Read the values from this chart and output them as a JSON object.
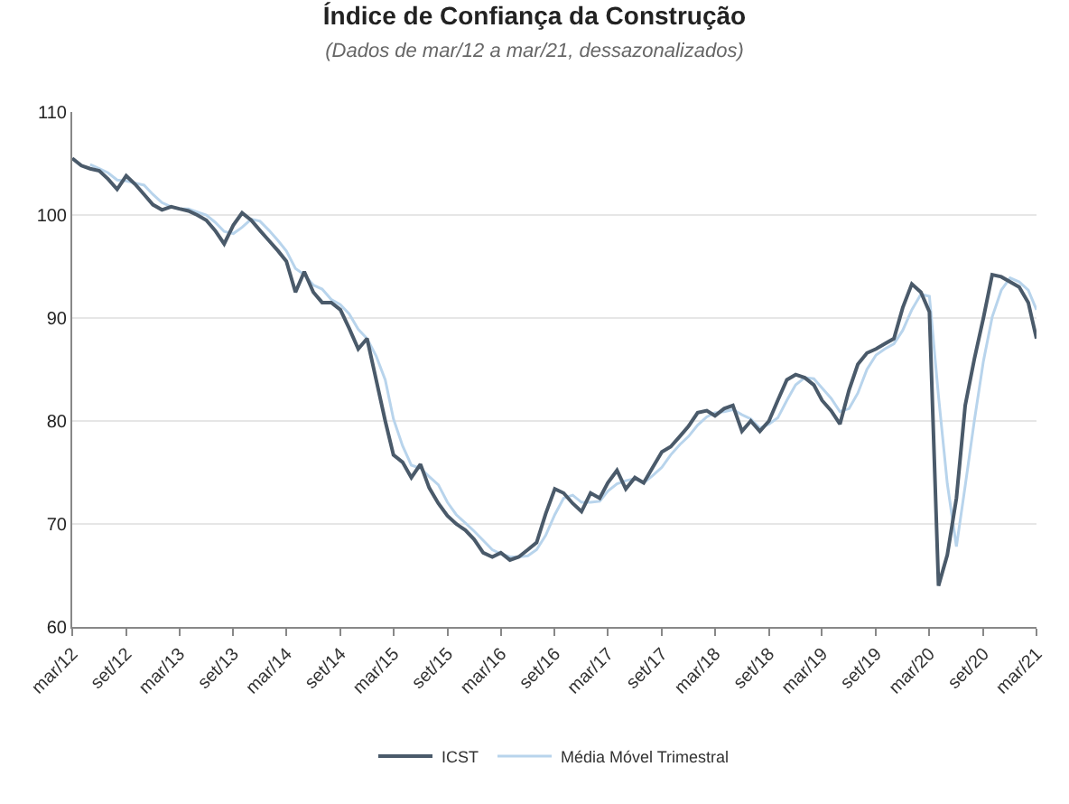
{
  "chart_data": {
    "type": "line",
    "title": "Índice de Confiança da Construção",
    "subtitle": "(Dados de mar/12 a mar/21, dessazonalizados)",
    "x": [
      "2012-03",
      "2012-04",
      "2012-05",
      "2012-06",
      "2012-07",
      "2012-08",
      "2012-09",
      "2012-10",
      "2012-11",
      "2012-12",
      "2013-01",
      "2013-02",
      "2013-03",
      "2013-04",
      "2013-05",
      "2013-06",
      "2013-07",
      "2013-08",
      "2013-09",
      "2013-10",
      "2013-11",
      "2013-12",
      "2014-01",
      "2014-02",
      "2014-03",
      "2014-04",
      "2014-05",
      "2014-06",
      "2014-07",
      "2014-08",
      "2014-09",
      "2014-10",
      "2014-11",
      "2014-12",
      "2015-01",
      "2015-02",
      "2015-03",
      "2015-04",
      "2015-05",
      "2015-06",
      "2015-07",
      "2015-08",
      "2015-09",
      "2015-10",
      "2015-11",
      "2015-12",
      "2016-01",
      "2016-02",
      "2016-03",
      "2016-04",
      "2016-05",
      "2016-06",
      "2016-07",
      "2016-08",
      "2016-09",
      "2016-10",
      "2016-11",
      "2016-12",
      "2017-01",
      "2017-02",
      "2017-03",
      "2017-04",
      "2017-05",
      "2017-06",
      "2017-07",
      "2017-08",
      "2017-09",
      "2017-10",
      "2017-11",
      "2017-12",
      "2018-01",
      "2018-02",
      "2018-03",
      "2018-04",
      "2018-05",
      "2018-06",
      "2018-07",
      "2018-08",
      "2018-09",
      "2018-10",
      "2018-11",
      "2018-12",
      "2019-01",
      "2019-02",
      "2019-03",
      "2019-04",
      "2019-05",
      "2019-06",
      "2019-07",
      "2019-08",
      "2019-09",
      "2019-10",
      "2019-11",
      "2019-12",
      "2020-01",
      "2020-02",
      "2020-03",
      "2020-04",
      "2020-05",
      "2020-06",
      "2020-07",
      "2020-08",
      "2020-09",
      "2020-10",
      "2020-11",
      "2020-12",
      "2021-01",
      "2021-02",
      "2021-03"
    ],
    "series": [
      {
        "name": "ICST",
        "color": "#4a5a6a",
        "values": [
          105.5,
          104.8,
          104.5,
          104.3,
          103.5,
          102.5,
          103.8,
          103,
          102,
          101,
          100.5,
          100.8,
          100.6,
          100.4,
          100,
          99.5,
          98.5,
          97.2,
          99,
          100.2,
          99.5,
          98.5,
          97.5,
          96.5,
          95.5,
          92.5,
          94.5,
          92.5,
          91.5,
          91.5,
          90.8,
          89,
          87,
          88,
          84,
          80,
          76.7,
          76,
          74.5,
          75.8,
          73.5,
          72,
          70.8,
          70,
          69.4,
          68.5,
          67.2,
          66.8,
          67.2,
          66.5,
          66.8,
          67.5,
          68.2,
          71,
          73.4,
          73,
          72,
          71.2,
          73,
          72.5,
          74,
          75.2,
          73.4,
          74.5,
          74,
          75.5,
          77,
          77.5,
          78.5,
          79.5,
          80.8,
          81,
          80.5,
          81.2,
          81.5,
          79,
          80,
          79,
          80,
          82,
          84,
          84.5,
          84.2,
          83.5,
          82,
          81,
          79.7,
          83,
          85.5,
          86.6,
          87,
          87.5,
          88,
          91,
          93.3,
          92.5,
          90.6,
          64,
          67,
          72.5,
          81.5,
          86,
          90,
          94.2,
          94,
          93.5,
          93,
          91.5,
          88
        ]
      },
      {
        "name": "Média Móvel Trimestral",
        "color": "#b8d4ec",
        "values": [
          null,
          null,
          104.9,
          104.5,
          104.1,
          103.4,
          103.3,
          103.1,
          102.9,
          102,
          101.2,
          100.8,
          100.6,
          100.6,
          100.3,
          100,
          99.3,
          98.4,
          98.2,
          98.8,
          99.6,
          99.4,
          98.5,
          97.5,
          96.5,
          94.8,
          94.2,
          93.2,
          92.8,
          91.8,
          91.3,
          90.4,
          88.9,
          88,
          86.3,
          84,
          80.2,
          77.6,
          75.7,
          75.4,
          74.6,
          73.8,
          72.1,
          70.9,
          70.1,
          69.3,
          68.4,
          67.5,
          67.1,
          66.8,
          66.8,
          66.9,
          67.5,
          68.9,
          70.9,
          72.5,
          72.8,
          72.1,
          72.1,
          72.2,
          73.2,
          73.9,
          74.2,
          74.4,
          74,
          74.7,
          75.5,
          76.7,
          77.7,
          78.5,
          79.6,
          80.4,
          80.8,
          80.9,
          81.1,
          80.6,
          80.2,
          79.3,
          79.7,
          80.3,
          82,
          83.5,
          84.2,
          84.1,
          83.2,
          82.2,
          80.9,
          81.2,
          82.7,
          85,
          86.4,
          87,
          87.5,
          88.8,
          90.8,
          92.3,
          92.1,
          82.4,
          73.9,
          67.8,
          73.7,
          80,
          85.8,
          90.1,
          92.7,
          93.9,
          93.5,
          92.7,
          90.8
        ]
      }
    ],
    "xlim": [
      "2012-03",
      "2021-03"
    ],
    "xticks": [
      {
        "value": "2012-03",
        "label": "mar/12"
      },
      {
        "value": "2012-09",
        "label": "set/12"
      },
      {
        "value": "2013-03",
        "label": "mar/13"
      },
      {
        "value": "2013-09",
        "label": "set/13"
      },
      {
        "value": "2014-03",
        "label": "mar/14"
      },
      {
        "value": "2014-09",
        "label": "set/14"
      },
      {
        "value": "2015-03",
        "label": "mar/15"
      },
      {
        "value": "2015-09",
        "label": "set/15"
      },
      {
        "value": "2016-03",
        "label": "mar/16"
      },
      {
        "value": "2016-09",
        "label": "set/16"
      },
      {
        "value": "2017-03",
        "label": "mar/17"
      },
      {
        "value": "2017-09",
        "label": "set/17"
      },
      {
        "value": "2018-03",
        "label": "mar/18"
      },
      {
        "value": "2018-09",
        "label": "set/18"
      },
      {
        "value": "2019-03",
        "label": "mar/19"
      },
      {
        "value": "2019-09",
        "label": "set/19"
      },
      {
        "value": "2020-03",
        "label": "mar/20"
      },
      {
        "value": "2020-09",
        "label": "set/20"
      },
      {
        "value": "2021-03",
        "label": "mar/21"
      }
    ],
    "ylim": [
      60,
      110
    ],
    "yticks": [
      60,
      70,
      80,
      90,
      100,
      110
    ],
    "grid": "y",
    "legend": "bottom",
    "marker": "none",
    "line_style": "solid"
  }
}
